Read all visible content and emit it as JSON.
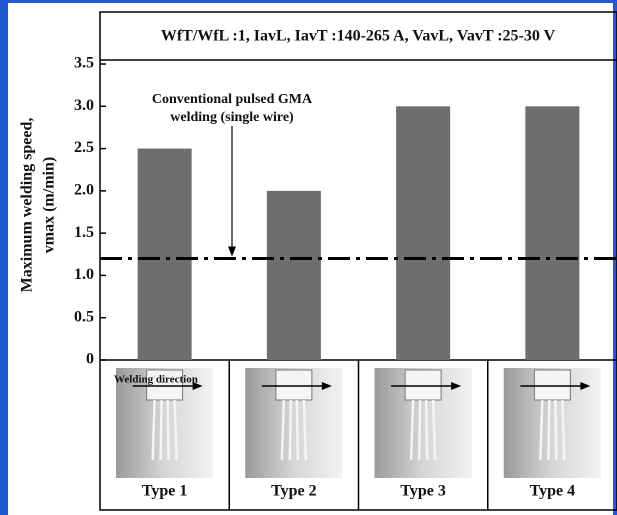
{
  "chart_data": {
    "type": "bar",
    "title": "WfT/WfL :1, IavL, IavT :140-265 A, VavL, VavT :25-30 V",
    "y_label": [
      "Maximum welding speed,",
      "vmax (m/min)"
    ],
    "categories": [
      "Type 1",
      "Type 2",
      "Type 3",
      "Type 4"
    ],
    "values": [
      2.5,
      2.0,
      3.0,
      3.0
    ],
    "color": "#6e6e6e",
    "ylim": [
      0,
      3.5
    ],
    "yticks": [
      0,
      0.5,
      {
        "value": 1,
        "label": "1.0"
      },
      1.5,
      {
        "value": 2,
        "label": "2.0"
      },
      2.5,
      {
        "value": 3,
        "label": "3.0"
      },
      3.5
    ],
    "reference_line": {
      "value": 1.2,
      "label": [
        "Conventional pulsed GMA",
        "welding (single wire)"
      ]
    },
    "direction_label": "Welding direction"
  }
}
